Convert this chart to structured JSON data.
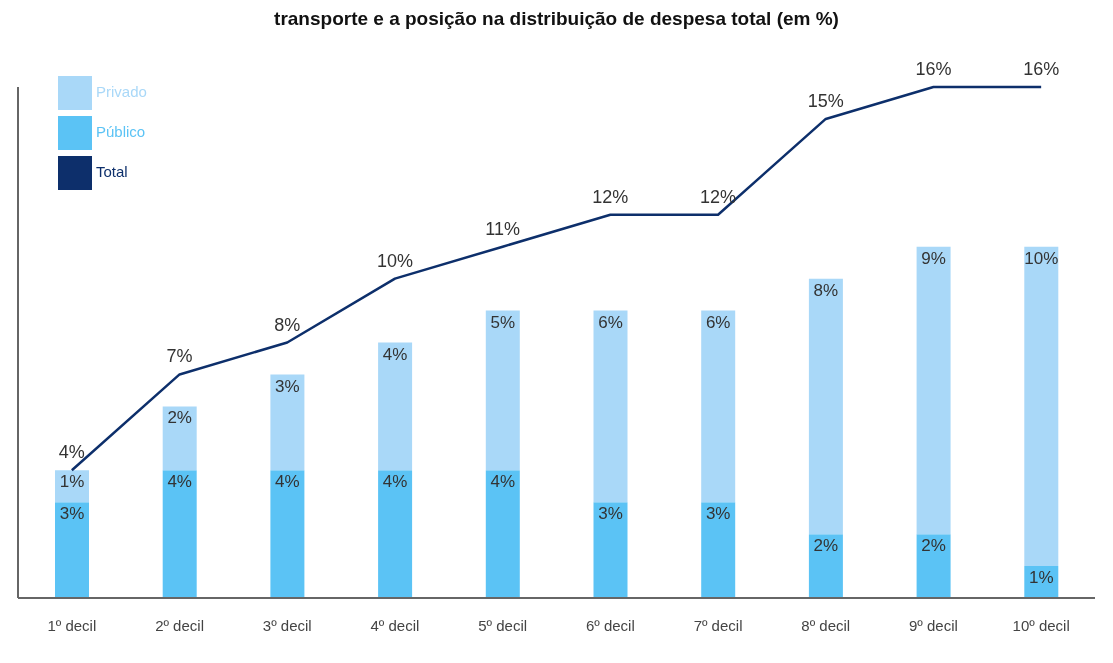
{
  "chart_data": {
    "type": "bar",
    "title": "transporte e a posição na distribuição de despesa total (em %)",
    "stacked": true,
    "legend": "top left",
    "grid": false,
    "tick_labels": "x",
    "marker": "none",
    "categories": [
      "1º decil",
      "2º decil",
      "3º decil",
      "4º decil",
      "5º decil",
      "6º decil",
      "7º decil",
      "8º decil",
      "9º decil",
      "10º decil"
    ],
    "series": [
      {
        "name": "Público",
        "color": "#5bc3f5",
        "values": [
          3,
          4,
          4,
          4,
          4,
          3,
          3,
          2,
          2,
          1
        ],
        "value_labels": [
          "3%",
          "4%",
          "4%",
          "4%",
          "4%",
          "3%",
          "3%",
          "2%",
          "2%",
          "1%"
        ]
      },
      {
        "name": "Privado",
        "color": "#a9d8f8",
        "values": [
          1,
          2,
          3,
          4,
          5,
          6,
          6,
          8,
          9,
          10
        ],
        "value_labels": [
          "1%",
          "2%",
          "3%",
          "4%",
          "5%",
          "6%",
          "6%",
          "8%",
          "9%",
          "10%"
        ]
      },
      {
        "name": "Total",
        "type": "line",
        "color": "#0d2f6b",
        "values": [
          4,
          7,
          8,
          10,
          11,
          12,
          12,
          15,
          16,
          16
        ],
        "value_labels": [
          "4%",
          "7%",
          "8%",
          "10%",
          "11%",
          "12%",
          "12%",
          "15%",
          "16%",
          "16%"
        ]
      }
    ]
  }
}
